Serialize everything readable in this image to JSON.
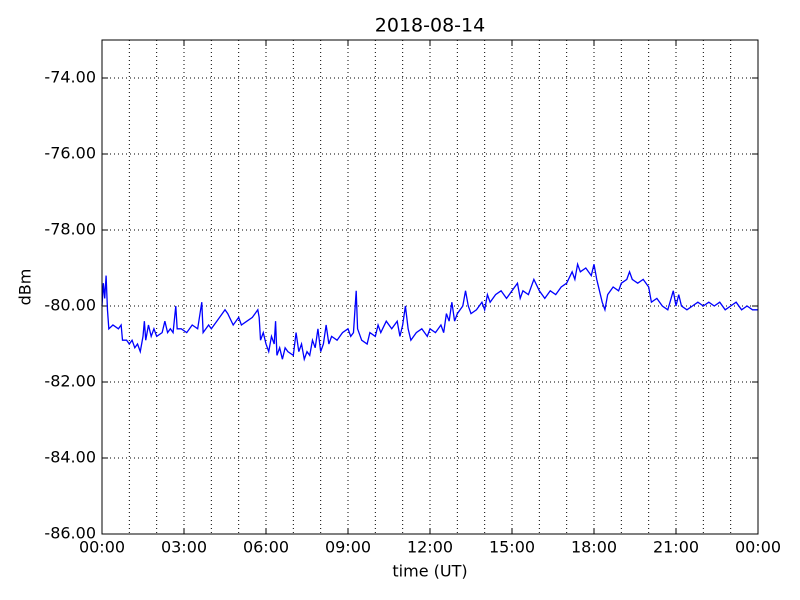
{
  "chart_data": {
    "type": "line",
    "title": "2018-08-14",
    "xlabel": "time (UT)",
    "ylabel": "dBm",
    "color": "#0000ff",
    "grid": true,
    "xlim": [
      0,
      24
    ],
    "ylim": [
      -86,
      -73
    ],
    "xticks": [
      {
        "value": 0,
        "label": "00:00"
      },
      {
        "value": 3,
        "label": "03:00"
      },
      {
        "value": 6,
        "label": "06:00"
      },
      {
        "value": 9,
        "label": "09:00"
      },
      {
        "value": 12,
        "label": "12:00"
      },
      {
        "value": 15,
        "label": "15:00"
      },
      {
        "value": 18,
        "label": "18:00"
      },
      {
        "value": 21,
        "label": "21:00"
      },
      {
        "value": 24,
        "label": "00:00"
      }
    ],
    "xgridlines": [
      1,
      2,
      3,
      4,
      5,
      6,
      7,
      8,
      9,
      10,
      11,
      12,
      13,
      14,
      15,
      16,
      17,
      18,
      19,
      20,
      21,
      22,
      23
    ],
    "yticks": [
      {
        "value": -86,
        "label": "-86.00"
      },
      {
        "value": -84,
        "label": "-84.00"
      },
      {
        "value": -82,
        "label": "-82.00"
      },
      {
        "value": -80,
        "label": "-80.00"
      },
      {
        "value": -78,
        "label": "-78.00"
      },
      {
        "value": -76,
        "label": "-76.00"
      },
      {
        "value": -74,
        "label": "-74.00"
      }
    ],
    "x": [
      0,
      0.05,
      0.1,
      0.15,
      0.2,
      0.25,
      0.4,
      0.6,
      0.7,
      0.75,
      0.9,
      1.0,
      1.1,
      1.2,
      1.3,
      1.4,
      1.5,
      1.55,
      1.6,
      1.7,
      1.8,
      1.9,
      2.0,
      2.2,
      2.3,
      2.4,
      2.5,
      2.6,
      2.7,
      2.75,
      2.9,
      3.1,
      3.3,
      3.5,
      3.65,
      3.7,
      3.9,
      4.0,
      4.2,
      4.4,
      4.5,
      4.6,
      4.8,
      5.0,
      5.1,
      5.3,
      5.5,
      5.6,
      5.7,
      5.75,
      5.8,
      5.9,
      6.0,
      6.1,
      6.2,
      6.3,
      6.35,
      6.4,
      6.5,
      6.6,
      6.7,
      6.8,
      7.0,
      7.1,
      7.2,
      7.3,
      7.4,
      7.5,
      7.6,
      7.7,
      7.8,
      7.9,
      8.0,
      8.1,
      8.2,
      8.3,
      8.4,
      8.6,
      8.8,
      9.0,
      9.1,
      9.2,
      9.3,
      9.35,
      9.5,
      9.7,
      9.8,
      10.0,
      10.1,
      10.2,
      10.4,
      10.6,
      10.8,
      10.9,
      11.0,
      11.1,
      11.2,
      11.3,
      11.5,
      11.7,
      11.9,
      12.0,
      12.2,
      12.4,
      12.5,
      12.6,
      12.7,
      12.8,
      12.9,
      13.0,
      13.2,
      13.3,
      13.4,
      13.5,
      13.7,
      13.9,
      14.0,
      14.1,
      14.2,
      14.4,
      14.6,
      14.8,
      15.0,
      15.2,
      15.3,
      15.4,
      15.6,
      15.8,
      16.0,
      16.2,
      16.4,
      16.6,
      16.8,
      17.0,
      17.2,
      17.3,
      17.4,
      17.5,
      17.7,
      17.9,
      18.0,
      18.1,
      18.2,
      18.3,
      18.4,
      18.5,
      18.7,
      18.9,
      19.0,
      19.2,
      19.3,
      19.4,
      19.6,
      19.8,
      20.0,
      20.1,
      20.3,
      20.5,
      20.7,
      20.9,
      21.0,
      21.1,
      21.2,
      21.4,
      21.6,
      21.8,
      22.0,
      22.2,
      22.4,
      22.6,
      22.8,
      23.0,
      23.2,
      23.4,
      23.6,
      23.8,
      24.0
    ],
    "values": [
      -80.0,
      -79.4,
      -79.8,
      -79.2,
      -80.1,
      -80.6,
      -80.5,
      -80.6,
      -80.5,
      -80.9,
      -80.9,
      -81.0,
      -80.9,
      -81.1,
      -81.0,
      -81.2,
      -80.8,
      -80.4,
      -80.9,
      -80.5,
      -80.8,
      -80.6,
      -80.8,
      -80.7,
      -80.4,
      -80.7,
      -80.6,
      -80.7,
      -80.0,
      -80.6,
      -80.6,
      -80.7,
      -80.5,
      -80.6,
      -79.9,
      -80.7,
      -80.5,
      -80.6,
      -80.4,
      -80.2,
      -80.1,
      -80.2,
      -80.5,
      -80.3,
      -80.5,
      -80.4,
      -80.3,
      -80.2,
      -80.1,
      -80.3,
      -80.9,
      -80.7,
      -81.0,
      -81.2,
      -80.8,
      -81.0,
      -80.4,
      -81.3,
      -81.1,
      -81.4,
      -81.1,
      -81.2,
      -81.3,
      -80.7,
      -81.2,
      -81.0,
      -81.4,
      -81.2,
      -81.3,
      -80.9,
      -81.1,
      -80.6,
      -81.2,
      -81.0,
      -80.5,
      -81.0,
      -80.8,
      -80.9,
      -80.7,
      -80.6,
      -80.8,
      -80.7,
      -79.6,
      -80.6,
      -80.9,
      -81.0,
      -80.7,
      -80.8,
      -80.5,
      -80.7,
      -80.4,
      -80.6,
      -80.4,
      -80.8,
      -80.5,
      -80.0,
      -80.6,
      -80.9,
      -80.7,
      -80.6,
      -80.8,
      -80.6,
      -80.7,
      -80.5,
      -80.7,
      -80.2,
      -80.4,
      -79.9,
      -80.4,
      -80.2,
      -80.0,
      -79.6,
      -80.0,
      -80.2,
      -80.1,
      -79.9,
      -80.1,
      -79.7,
      -79.9,
      -79.7,
      -79.6,
      -79.8,
      -79.6,
      -79.4,
      -79.8,
      -79.6,
      -79.7,
      -79.3,
      -79.6,
      -79.8,
      -79.6,
      -79.7,
      -79.5,
      -79.4,
      -79.1,
      -79.3,
      -78.9,
      -79.1,
      -79.0,
      -79.2,
      -78.9,
      -79.3,
      -79.6,
      -79.9,
      -80.1,
      -79.7,
      -79.5,
      -79.6,
      -79.4,
      -79.3,
      -79.1,
      -79.3,
      -79.4,
      -79.3,
      -79.5,
      -79.9,
      -79.8,
      -80.0,
      -80.1,
      -79.6,
      -80.0,
      -79.7,
      -80.0,
      -80.1,
      -80.0,
      -79.9,
      -80.0,
      -79.9,
      -80.0,
      -79.9,
      -80.1,
      -80.0,
      -79.9,
      -80.1,
      -80.0,
      -80.1,
      -80.1
    ]
  }
}
